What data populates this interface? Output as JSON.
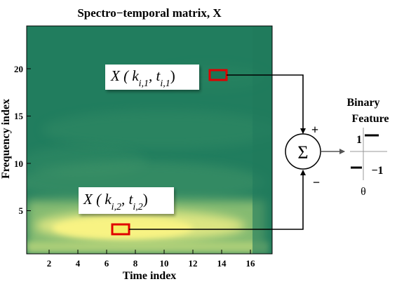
{
  "title": "Spectro−temporal matrix, X",
  "xlabel": "Time index",
  "ylabel": "Frequency index",
  "x_ticks": [
    "2",
    "4",
    "6",
    "8",
    "10",
    "12",
    "14",
    "16"
  ],
  "y_ticks": [
    "5",
    "10",
    "15",
    "20"
  ],
  "callout1": {
    "main": "X ( k",
    "sub_k": "i,1",
    "comma": ", t",
    "sub_t": "i,1",
    "close": ")"
  },
  "callout2": {
    "main": "X ( k",
    "sub_k": "i,2",
    "comma": ", t",
    "sub_t": "i,2",
    "close": ")"
  },
  "plus_sign": "+",
  "minus_sign": "−",
  "sigma": "Σ",
  "feature_title_1": "Binary",
  "feature_title_2": "Feature",
  "level_high": "1",
  "level_low": "−1",
  "theta": "θ",
  "colors": {
    "box": "#e00000",
    "heat_low": "#1f7a5c",
    "heat_high": "#f6f07a"
  }
}
